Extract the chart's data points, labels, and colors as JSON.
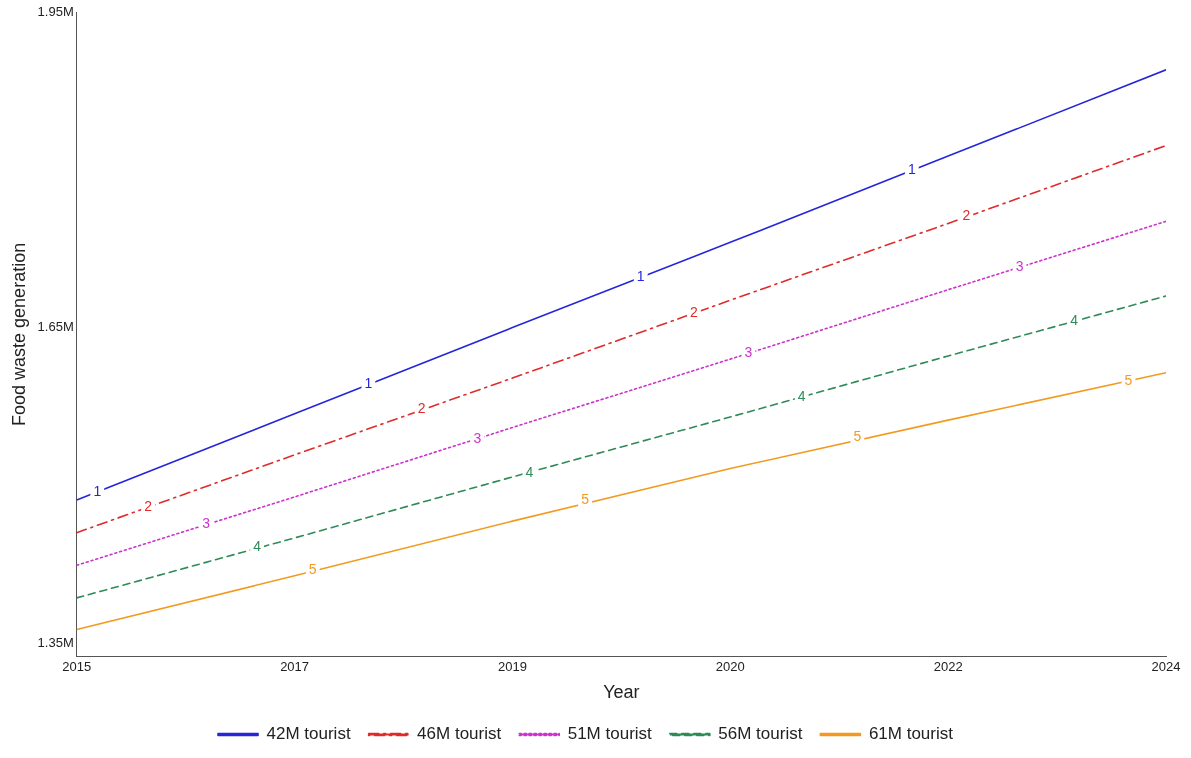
{
  "chart_data": {
    "type": "line",
    "xlabel": "Year",
    "ylabel": "Food waste generation",
    "x": [
      2015,
      2016.8,
      2018.6,
      2020.4,
      2022.2,
      2024
    ],
    "xlim": [
      2015,
      2024
    ],
    "xticks": [
      {
        "value": 2015,
        "label": "2015"
      },
      {
        "value": 2016.8,
        "label": "2017"
      },
      {
        "value": 2018.6,
        "label": "2019"
      },
      {
        "value": 2020.4,
        "label": "2020"
      },
      {
        "value": 2022.2,
        "label": "2022"
      },
      {
        "value": 2024,
        "label": "2024"
      }
    ],
    "ylim": [
      1337000,
      1950000
    ],
    "yticks": [
      {
        "value": 1350000,
        "label": "1.35M"
      },
      {
        "value": 1650000,
        "label": "1.65M"
      },
      {
        "value": 1950000,
        "label": "1.95M"
      }
    ],
    "grid": false,
    "legend": "bottom",
    "marker": "none",
    "series": [
      {
        "name": "42M tourist",
        "color": "#2626d9",
        "line_style": "solid",
        "values": [
          1486000,
          1568000,
          1650000,
          1731000,
          1813000,
          1895000
        ]
      },
      {
        "name": "46M tourist",
        "color": "#e02b2b",
        "line_style": "dashdot",
        "values": [
          1455000,
          1529000,
          1602000,
          1676000,
          1749000,
          1823000
        ]
      },
      {
        "name": "51M tourist",
        "color": "#cc33cc",
        "line_style": "dotted",
        "values": [
          1424000,
          1489000,
          1555000,
          1620000,
          1686000,
          1751000
        ]
      },
      {
        "name": "56M tourist",
        "color": "#2e8b57",
        "line_style": "dashed",
        "values": [
          1393000,
          1450000,
          1508000,
          1565000,
          1623000,
          1680000
        ]
      },
      {
        "name": "61M tourist",
        "color": "#f39a1e",
        "line_style": "solid",
        "values": [
          1363000,
          1414000,
          1466000,
          1516000,
          1562000,
          1607000
        ]
      }
    ],
    "annotations": [
      {
        "text": "1",
        "x": 2015.17,
        "y": 1494000
      },
      {
        "text": "1",
        "x": 2017.41,
        "y": 1596000
      },
      {
        "text": "1",
        "x": 2019.66,
        "y": 1698000
      },
      {
        "text": "1",
        "x": 2021.9,
        "y": 1800000
      },
      {
        "text": "2",
        "x": 2015.59,
        "y": 1479000
      },
      {
        "text": "2",
        "x": 2017.85,
        "y": 1572000
      },
      {
        "text": "2",
        "x": 2020.1,
        "y": 1664000
      },
      {
        "text": "2",
        "x": 2022.35,
        "y": 1756000
      },
      {
        "text": "3",
        "x": 2016.07,
        "y": 1463000
      },
      {
        "text": "3",
        "x": 2018.31,
        "y": 1544000
      },
      {
        "text": "3",
        "x": 2020.55,
        "y": 1626000
      },
      {
        "text": "3",
        "x": 2022.79,
        "y": 1707000
      },
      {
        "text": "4",
        "x": 2016.49,
        "y": 1441000
      },
      {
        "text": "4",
        "x": 2018.74,
        "y": 1512000
      },
      {
        "text": "4",
        "x": 2020.99,
        "y": 1584000
      },
      {
        "text": "4",
        "x": 2023.24,
        "y": 1656000
      },
      {
        "text": "5",
        "x": 2016.95,
        "y": 1419000
      },
      {
        "text": "5",
        "x": 2019.2,
        "y": 1486000
      },
      {
        "text": "5",
        "x": 2021.45,
        "y": 1546000
      },
      {
        "text": "5",
        "x": 2023.69,
        "y": 1599000
      }
    ]
  }
}
